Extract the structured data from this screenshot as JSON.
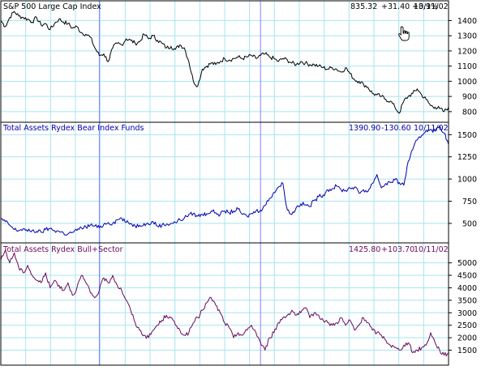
{
  "colors": {
    "background": "#ffffff",
    "grid": "#a8e4f0",
    "event_line": "#8080ff",
    "border": "#000000",
    "sp500": "#000000",
    "bear": "#0000b0",
    "bull": "#6a0a5a"
  },
  "cursor_icon": "hand-pointer-icon",
  "chart_data": [
    {
      "type": "line",
      "title": "S&P 500 Large Cap Index",
      "readout": {
        "value": "835.32",
        "change": "+31.40",
        "percent": "+3.9%",
        "date": "10/11/02"
      },
      "ylim": [
        730,
        1530
      ],
      "yticks": [
        800,
        900,
        1000,
        1100,
        1200,
        1300,
        1400
      ],
      "grid": true,
      "x_index_range": [
        0,
        100
      ],
      "event_markers_x": [
        22,
        58
      ],
      "series": [
        {
          "x": [
            0,
            1,
            2,
            3,
            4,
            5,
            6,
            7,
            8,
            9,
            10,
            11,
            12,
            13,
            14,
            15,
            16,
            17,
            18,
            19,
            20,
            21,
            22,
            23,
            24,
            25,
            26,
            27,
            28,
            29,
            30,
            31,
            32,
            33,
            34,
            35,
            36,
            37,
            38,
            39,
            40,
            41,
            42,
            43,
            44,
            45,
            46,
            47,
            48,
            49,
            50,
            51,
            52,
            53,
            54,
            55,
            56,
            57,
            58,
            59,
            60,
            61,
            62,
            63,
            64,
            65,
            66,
            67,
            68,
            69,
            70,
            71,
            72,
            73,
            74,
            75,
            76,
            77,
            78,
            79,
            80,
            81,
            82,
            83,
            84,
            85,
            86,
            87,
            88,
            89,
            90,
            91,
            92,
            93,
            94,
            95,
            96,
            97,
            98,
            99,
            100
          ],
          "values": [
            1400,
            1360,
            1420,
            1460,
            1430,
            1420,
            1410,
            1390,
            1420,
            1370,
            1380,
            1340,
            1380,
            1410,
            1390,
            1380,
            1350,
            1360,
            1320,
            1310,
            1290,
            1220,
            1170,
            1180,
            1130,
            1220,
            1250,
            1240,
            1280,
            1270,
            1250,
            1260,
            1310,
            1280,
            1300,
            1270,
            1250,
            1220,
            1230,
            1210,
            1240,
            1220,
            1130,
            1000,
            970,
            1080,
            1100,
            1120,
            1110,
            1130,
            1150,
            1140,
            1150,
            1160,
            1150,
            1160,
            1170,
            1150,
            1170,
            1180,
            1160,
            1150,
            1130,
            1150,
            1140,
            1120,
            1110,
            1130,
            1120,
            1110,
            1110,
            1100,
            1090,
            1080,
            1090,
            1080,
            1060,
            1090,
            1050,
            1010,
            1000,
            980,
            960,
            920,
            910,
            900,
            880,
            870,
            830,
            790,
            870,
            900,
            920,
            950,
            910,
            880,
            840,
            830,
            820,
            800,
            830
          ]
        }
      ]
    },
    {
      "type": "line",
      "title": "Total Assets Rydex Bear Index Funds",
      "readout": {
        "value": "1390.90",
        "change": "-130.60",
        "date": "10/11/02"
      },
      "ylim": [
        280,
        1640
      ],
      "yticks": [
        500,
        750,
        1000,
        1250,
        1500
      ],
      "grid": true,
      "x_index_range": [
        0,
        100
      ],
      "event_markers_x": [
        22,
        58
      ],
      "series": [
        {
          "x": [
            0,
            1,
            2,
            3,
            4,
            5,
            6,
            7,
            8,
            9,
            10,
            11,
            12,
            13,
            14,
            15,
            16,
            17,
            18,
            19,
            20,
            21,
            22,
            23,
            24,
            25,
            26,
            27,
            28,
            29,
            30,
            31,
            32,
            33,
            34,
            35,
            36,
            37,
            38,
            39,
            40,
            41,
            42,
            43,
            44,
            45,
            46,
            47,
            48,
            49,
            50,
            51,
            52,
            53,
            54,
            55,
            56,
            57,
            58,
            59,
            60,
            61,
            62,
            63,
            64,
            65,
            66,
            67,
            68,
            69,
            70,
            71,
            72,
            73,
            74,
            75,
            76,
            77,
            78,
            79,
            80,
            81,
            82,
            83,
            84,
            85,
            86,
            87,
            88,
            89,
            90,
            91,
            92,
            93,
            94,
            95,
            96,
            97,
            98,
            99,
            100
          ],
          "values": [
            550,
            520,
            480,
            430,
            420,
            440,
            410,
            420,
            410,
            400,
            430,
            440,
            420,
            410,
            390,
            380,
            400,
            420,
            450,
            460,
            480,
            470,
            450,
            490,
            510,
            500,
            540,
            560,
            510,
            500,
            470,
            480,
            500,
            490,
            520,
            470,
            480,
            490,
            500,
            510,
            540,
            560,
            600,
            610,
            580,
            600,
            610,
            640,
            620,
            600,
            640,
            620,
            640,
            660,
            600,
            580,
            610,
            640,
            650,
            700,
            780,
            850,
            910,
            950,
            650,
            600,
            680,
            720,
            710,
            690,
            760,
            800,
            820,
            880,
            890,
            920,
            880,
            870,
            900,
            910,
            840,
            880,
            860,
            950,
            1050,
            900,
            950,
            960,
            990,
            960,
            930,
            1200,
            1330,
            1440,
            1490,
            1550,
            1560,
            1540,
            1600,
            1520,
            1390
          ]
        }
      ]
    },
    {
      "type": "line",
      "title": "Total Assets Rydex Bull+Sector",
      "readout": {
        "value": "1425.80",
        "change": "+103.70",
        "date": "10/11/02"
      },
      "ylim": [
        900,
        5800
      ],
      "yticks": [
        1500,
        2000,
        2500,
        3000,
        3500,
        4000,
        4500,
        5000
      ],
      "grid": true,
      "x_index_range": [
        0,
        100
      ],
      "event_markers_x": [
        22,
        58
      ],
      "series": [
        {
          "x": [
            0,
            1,
            2,
            3,
            4,
            5,
            6,
            7,
            8,
            9,
            10,
            11,
            12,
            13,
            14,
            15,
            16,
            17,
            18,
            19,
            20,
            21,
            22,
            23,
            24,
            25,
            26,
            27,
            28,
            29,
            30,
            31,
            32,
            33,
            34,
            35,
            36,
            37,
            38,
            39,
            40,
            41,
            42,
            43,
            44,
            45,
            46,
            47,
            48,
            49,
            50,
            51,
            52,
            53,
            54,
            55,
            56,
            57,
            58,
            59,
            60,
            61,
            62,
            63,
            64,
            65,
            66,
            67,
            68,
            69,
            70,
            71,
            72,
            73,
            74,
            75,
            76,
            77,
            78,
            79,
            80,
            81,
            82,
            83,
            84,
            85,
            86,
            87,
            88,
            89,
            90,
            91,
            92,
            93,
            94,
            95,
            96,
            97,
            98,
            99,
            100
          ],
          "values": [
            5100,
            5500,
            5000,
            5400,
            4800,
            4600,
            4900,
            4500,
            4300,
            4200,
            4600,
            4000,
            4300,
            4100,
            3900,
            4200,
            3700,
            4000,
            4500,
            4200,
            3800,
            3600,
            3900,
            4400,
            4200,
            4500,
            4100,
            3900,
            3500,
            3100,
            2600,
            2300,
            2100,
            2000,
            2300,
            2500,
            2700,
            2900,
            2800,
            2500,
            2300,
            2100,
            2200,
            2600,
            2800,
            3100,
            3400,
            3600,
            3300,
            3000,
            2600,
            2400,
            2000,
            2200,
            2100,
            2300,
            2500,
            2200,
            1800,
            1500,
            2000,
            2200,
            2600,
            2800,
            2900,
            3100,
            2900,
            3000,
            3200,
            2800,
            3000,
            2900,
            2700,
            2600,
            2500,
            2600,
            2800,
            2500,
            2700,
            2300,
            2500,
            2800,
            2600,
            2300,
            2200,
            2100,
            1900,
            1700,
            1600,
            1500,
            1700,
            1800,
            1400,
            1500,
            1600,
            1700,
            2200,
            1800,
            1500,
            1300,
            1400
          ]
        }
      ]
    }
  ]
}
